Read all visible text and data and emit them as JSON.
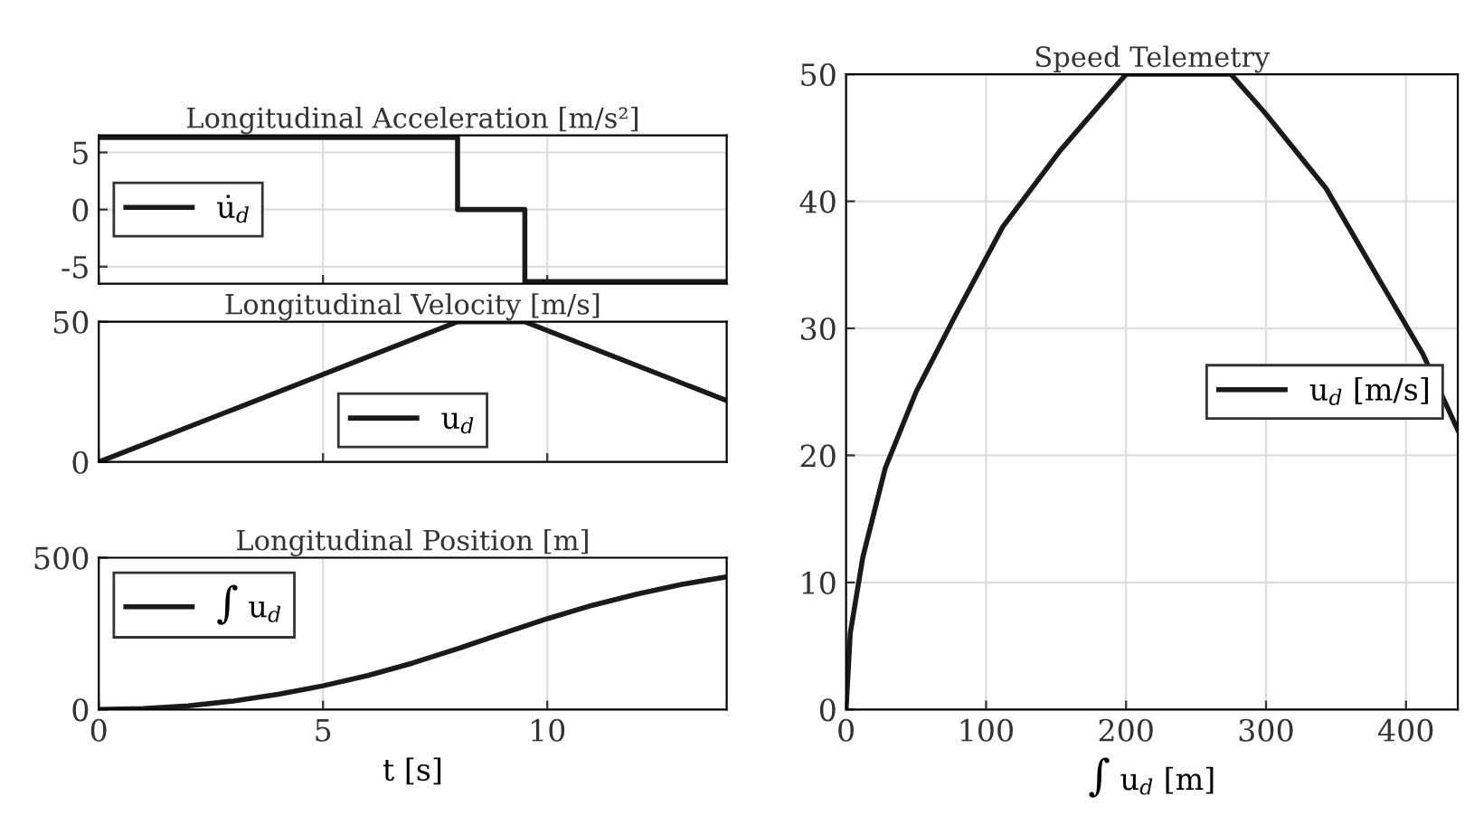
{
  "chart_data": [
    {
      "type": "step",
      "title": "Longitudinal Acceleration [m/s²]",
      "x": [
        0,
        8,
        9.5,
        14
      ],
      "series": [
        {
          "name": "u̇$_{d}$",
          "color": "#1a1a1a",
          "values": [
            6.3,
            0,
            -6.3,
            -6.3
          ]
        }
      ],
      "xlim": [
        0,
        14
      ],
      "ylim": [
        -6.5,
        6.5
      ],
      "xticks": [
        0,
        5,
        10
      ],
      "yticks": [
        -5,
        0,
        5
      ],
      "grid": true,
      "legend": "left",
      "tick_labels": "y"
    },
    {
      "type": "line",
      "title": "Longitudinal Velocity [m/s]",
      "x": [
        0,
        8,
        9.5,
        14
      ],
      "series": [
        {
          "name": "u$_{d}$",
          "color": "#1a1a1a",
          "values": [
            0,
            50,
            50,
            21.9
          ]
        }
      ],
      "xlim": [
        0,
        14
      ],
      "ylim": [
        0,
        50
      ],
      "xticks": [
        0,
        5,
        10
      ],
      "yticks": [
        0,
        50
      ],
      "grid": true,
      "legend": "bottom",
      "tick_labels": "y"
    },
    {
      "type": "line",
      "title": "Longitudinal Position [m]",
      "xlabel": "t [s]",
      "x": [
        0,
        1,
        2,
        3,
        4,
        5,
        6,
        7,
        8,
        9,
        9.5,
        10,
        11,
        12,
        13,
        14
      ],
      "series": [
        {
          "name": "∫ u$_{d}$",
          "color": "#1a1a1a",
          "values": [
            0,
            3,
            12,
            28,
            50,
            78,
            112,
            153,
            200,
            250,
            275,
            299,
            343,
            380,
            412,
            437
          ]
        }
      ],
      "xlim": [
        0,
        14
      ],
      "ylim": [
        0,
        500
      ],
      "xticks": [
        0,
        5,
        10
      ],
      "yticks": [
        0,
        500
      ],
      "grid": true,
      "legend": "top left"
    },
    {
      "type": "line",
      "title": "Speed Telemetry",
      "xlabel": "∫ u$_{d}$ [m]",
      "x": [
        0,
        3,
        12,
        28,
        50,
        78,
        112,
        153,
        200,
        275,
        299,
        343,
        380,
        412,
        437
      ],
      "series": [
        {
          "name": "u$_{d}$ [m/s]",
          "color": "#1a1a1a",
          "values": [
            0,
            6,
            12,
            19,
            25,
            31,
            38,
            44,
            50,
            50,
            47,
            41,
            34,
            28,
            22
          ]
        }
      ],
      "xlim": [
        0,
        437
      ],
      "ylim": [
        0,
        50
      ],
      "xticks": [
        0,
        100,
        200,
        300,
        400
      ],
      "yticks": [
        0,
        10,
        20,
        30,
        40,
        50
      ],
      "grid": true,
      "legend": "right"
    }
  ]
}
